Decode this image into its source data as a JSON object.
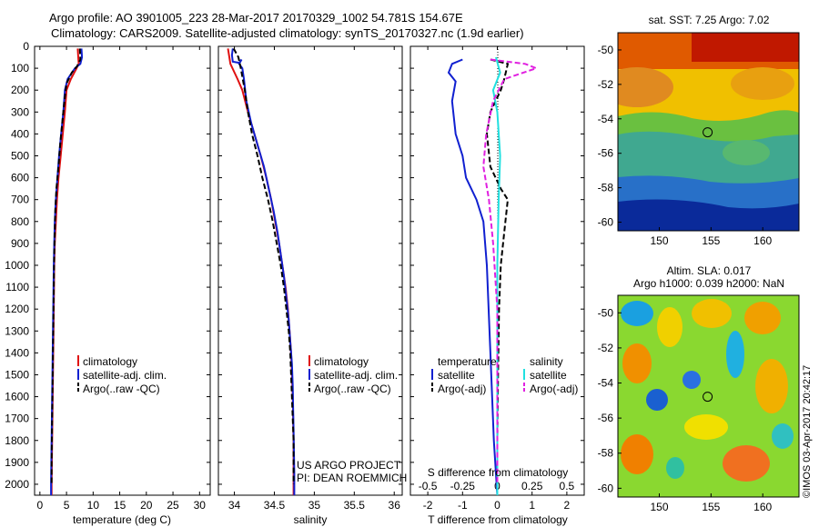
{
  "header": {
    "line1": "Argo profile: AO 3901005_223 28-Mar-2017 20170329_1002 54.781S 154.67E",
    "line2": "Climatology: CARS2009. Satellite-adjusted climatology: synTS_20170327.nc (1.9d earlier)"
  },
  "colors": {
    "climatology": "#e01010",
    "satellite": "#1020d0",
    "argo": "#000000",
    "salinity_satellite": "#20e0e0",
    "salinity_argo": "#e020e0"
  },
  "chart_data": [
    {
      "type": "line",
      "name": "temperature-profile",
      "xlabel": "temperature (deg C)",
      "ylabel": "",
      "xlim": [
        -1,
        32
      ],
      "ylim": [
        2050,
        0
      ],
      "xticks": [
        0,
        5,
        10,
        15,
        20,
        25,
        30
      ],
      "yticks": [
        0,
        100,
        200,
        300,
        400,
        500,
        600,
        700,
        800,
        900,
        1000,
        1100,
        1200,
        1300,
        1400,
        1500,
        1600,
        1700,
        1800,
        1900,
        2000
      ],
      "legend": [
        "climatology",
        "satellite-adj. clim.",
        "Argo(..raw -QC)"
      ],
      "legend_position": "lower-center",
      "series": [
        {
          "name": "climatology",
          "color": "#e01010",
          "dash": false,
          "points": [
            [
              7.1,
              10
            ],
            [
              7.2,
              50
            ],
            [
              7.3,
              80
            ],
            [
              6.9,
              100
            ],
            [
              5.8,
              150
            ],
            [
              5.0,
              200
            ],
            [
              4.7,
              300
            ],
            [
              4.3,
              400
            ],
            [
              3.9,
              500
            ],
            [
              3.5,
              600
            ],
            [
              3.2,
              700
            ],
            [
              3.0,
              800
            ],
            [
              2.8,
              900
            ],
            [
              2.7,
              1000
            ],
            [
              2.6,
              1200
            ],
            [
              2.5,
              1400
            ],
            [
              2.4,
              1600
            ],
            [
              2.3,
              1800
            ],
            [
              2.2,
              2000
            ],
            [
              2.2,
              2050
            ]
          ]
        },
        {
          "name": "satellite-adj. clim.",
          "color": "#1020d0",
          "dash": false,
          "points": [
            [
              7.8,
              10
            ],
            [
              7.9,
              50
            ],
            [
              7.6,
              80
            ],
            [
              6.6,
              100
            ],
            [
              5.2,
              150
            ],
            [
              4.7,
              200
            ],
            [
              4.4,
              300
            ],
            [
              4.0,
              400
            ],
            [
              3.6,
              500
            ],
            [
              3.3,
              600
            ],
            [
              3.0,
              700
            ],
            [
              2.8,
              800
            ],
            [
              2.7,
              900
            ],
            [
              2.6,
              1000
            ],
            [
              2.5,
              1200
            ],
            [
              2.4,
              1400
            ],
            [
              2.3,
              1600
            ],
            [
              2.2,
              1800
            ],
            [
              2.1,
              2000
            ],
            [
              2.1,
              2050
            ]
          ]
        },
        {
          "name": "Argo(..raw -QC)",
          "color": "#000000",
          "dash": true,
          "points": [
            [
              7.5,
              10
            ],
            [
              7.6,
              60
            ],
            [
              7.0,
              90
            ],
            [
              6.0,
              120
            ],
            [
              5.0,
              170
            ],
            [
              4.6,
              250
            ],
            [
              4.2,
              350
            ],
            [
              3.8,
              450
            ],
            [
              3.5,
              550
            ],
            [
              3.1,
              650
            ],
            [
              2.9,
              750
            ],
            [
              2.8,
              850
            ],
            [
              2.7,
              950
            ],
            [
              2.6,
              1100
            ],
            [
              2.5,
              1300
            ],
            [
              2.4,
              1500
            ],
            [
              2.3,
              1700
            ],
            [
              2.2,
              1900
            ],
            [
              2.2,
              2000
            ]
          ]
        }
      ]
    },
    {
      "type": "line",
      "name": "salinity-profile",
      "xlabel": "salinity",
      "ylabel": "",
      "xlim": [
        33.8,
        36.1
      ],
      "ylim": [
        2050,
        0
      ],
      "xticks": [
        34,
        34.5,
        35,
        35.5,
        36
      ],
      "legend": [
        "climatology",
        "satellite-adj. clim.",
        "Argo(..raw -QC)"
      ],
      "legend_position": "lower-center",
      "annotation": [
        "US ARGO PROJECT",
        "PI: DEAN ROEMMICH"
      ],
      "series": [
        {
          "name": "climatology",
          "color": "#e01010",
          "dash": false,
          "points": [
            [
              33.92,
              10
            ],
            [
              33.95,
              80
            ],
            [
              34.04,
              150
            ],
            [
              34.1,
              200
            ],
            [
              34.17,
              300
            ],
            [
              34.25,
              400
            ],
            [
              34.33,
              500
            ],
            [
              34.4,
              600
            ],
            [
              34.46,
              700
            ],
            [
              34.51,
              800
            ],
            [
              34.56,
              900
            ],
            [
              34.6,
              1000
            ],
            [
              34.64,
              1100
            ],
            [
              34.67,
              1200
            ],
            [
              34.69,
              1300
            ],
            [
              34.71,
              1400
            ],
            [
              34.72,
              1500
            ],
            [
              34.73,
              1600
            ],
            [
              34.735,
              1700
            ],
            [
              34.74,
              1800
            ],
            [
              34.74,
              1900
            ],
            [
              34.74,
              2000
            ],
            [
              34.74,
              2050
            ]
          ]
        },
        {
          "name": "satellite-adj. clim.",
          "color": "#1020d0",
          "dash": false,
          "points": [
            [
              33.98,
              10
            ],
            [
              33.97,
              40
            ],
            [
              33.98,
              70
            ],
            [
              34.06,
              75
            ],
            [
              34.09,
              60
            ],
            [
              34.06,
              80
            ],
            [
              34.1,
              100
            ],
            [
              34.12,
              150
            ],
            [
              34.15,
              250
            ],
            [
              34.21,
              350
            ],
            [
              34.29,
              450
            ],
            [
              34.37,
              550
            ],
            [
              34.43,
              650
            ],
            [
              34.49,
              750
            ],
            [
              34.54,
              850
            ],
            [
              34.58,
              950
            ],
            [
              34.62,
              1050
            ],
            [
              34.65,
              1150
            ],
            [
              34.68,
              1250
            ],
            [
              34.7,
              1350
            ],
            [
              34.72,
              1450
            ],
            [
              34.73,
              1550
            ],
            [
              34.735,
              1650
            ],
            [
              34.74,
              1750
            ],
            [
              34.745,
              1850
            ],
            [
              34.75,
              1950
            ],
            [
              34.75,
              2050
            ]
          ]
        },
        {
          "name": "Argo(..raw -QC)",
          "color": "#000000",
          "dash": true,
          "points": [
            [
              33.99,
              10
            ],
            [
              34.05,
              50
            ],
            [
              34.08,
              100
            ],
            [
              34.13,
              200
            ],
            [
              34.17,
              300
            ],
            [
              34.22,
              400
            ],
            [
              34.29,
              500
            ],
            [
              34.35,
              600
            ],
            [
              34.42,
              700
            ],
            [
              34.48,
              800
            ],
            [
              34.53,
              900
            ],
            [
              34.58,
              1000
            ],
            [
              34.62,
              1100
            ],
            [
              34.65,
              1200
            ],
            [
              34.68,
              1300
            ],
            [
              34.7,
              1400
            ],
            [
              34.71,
              1500
            ],
            [
              34.72,
              1600
            ],
            [
              34.73,
              1700
            ],
            [
              34.74,
              1800
            ],
            [
              34.74,
              1900
            ],
            [
              34.74,
              2000
            ]
          ]
        }
      ]
    },
    {
      "type": "line",
      "name": "difference-profile",
      "xlabel": "T difference from climatology",
      "x2label": "S difference from climatology",
      "ylabel": "",
      "xlim": [
        -2.5,
        2.5
      ],
      "ylim": [
        2050,
        0
      ],
      "xticks": [
        -2,
        -1,
        0,
        1,
        2
      ],
      "x2ticks": [
        -0.5,
        -0.25,
        0,
        0.25,
        0.5
      ],
      "legend_temperature": {
        "title": "temperature",
        "entries": [
          "satellite",
          "Argo(-adj)"
        ]
      },
      "legend_salinity": {
        "title": "salinity",
        "entries": [
          "satellite",
          "Argo(-adj)"
        ]
      },
      "legend_position": "lower-center",
      "series": [
        {
          "name": "T satellite",
          "color": "#1020d0",
          "dash": false,
          "points": [
            [
              -1.0,
              60
            ],
            [
              -1.3,
              80
            ],
            [
              -1.4,
              120
            ],
            [
              -1.2,
              160
            ],
            [
              -1.3,
              250
            ],
            [
              -1.2,
              400
            ],
            [
              -1.0,
              500
            ],
            [
              -0.9,
              600
            ],
            [
              -0.6,
              700
            ],
            [
              -0.4,
              800
            ],
            [
              -0.3,
              1000
            ],
            [
              -0.2,
              1400
            ],
            [
              -0.1,
              1800
            ],
            [
              0,
              2050
            ]
          ]
        },
        {
          "name": "T Argo(-adj)",
          "color": "#000000",
          "dash": true,
          "points": [
            [
              -0.2,
              60
            ],
            [
              0.3,
              80
            ],
            [
              0.2,
              150
            ],
            [
              0.1,
              200
            ],
            [
              -0.2,
              300
            ],
            [
              -0.3,
              400
            ],
            [
              -0.2,
              550
            ],
            [
              0.1,
              650
            ],
            [
              0.3,
              700
            ],
            [
              0.2,
              850
            ],
            [
              0.1,
              1000
            ],
            [
              0.05,
              1200
            ],
            [
              0.02,
              1500
            ],
            [
              0,
              1800
            ],
            [
              0,
              2000
            ]
          ]
        },
        {
          "name": "S satellite",
          "color": "#20e0e0",
          "dash": false,
          "points": [
            [
              -0.01,
              50
            ],
            [
              0.02,
              120
            ],
            [
              -0.03,
              200
            ],
            [
              0.0,
              300
            ],
            [
              0.02,
              500
            ],
            [
              0.01,
              700
            ],
            [
              0.0,
              1000
            ],
            [
              0.0,
              1500
            ],
            [
              0.0,
              2050
            ]
          ]
        },
        {
          "name": "S Argo(-adj)",
          "color": "#e020e0",
          "dash": true,
          "points": [
            [
              -0.05,
              60
            ],
            [
              0.2,
              80
            ],
            [
              0.28,
              100
            ],
            [
              0.05,
              150
            ],
            [
              -0.03,
              250
            ],
            [
              -0.08,
              400
            ],
            [
              -0.1,
              550
            ],
            [
              -0.06,
              700
            ],
            [
              -0.03,
              900
            ],
            [
              0,
              1200
            ],
            [
              0,
              1600
            ],
            [
              0,
              2000
            ]
          ]
        }
      ]
    },
    {
      "type": "heatmap",
      "name": "sst-map",
      "title": "sat. SST: 7.25 Argo: 7.02",
      "xlim": [
        146,
        163.5
      ],
      "ylim": [
        -60.5,
        -49
      ],
      "xticks": [
        150,
        155,
        160
      ],
      "yticks": [
        -50,
        -52,
        -54,
        -56,
        -58,
        -60
      ],
      "xtick_labels": [
        "150",
        "155",
        "160"
      ],
      "ytick_labels": [
        "-50",
        "-52",
        "-54",
        "-56",
        "-58",
        "-60"
      ],
      "argo_location": [
        154.67,
        -54.781
      ]
    },
    {
      "type": "heatmap",
      "name": "sla-map",
      "title": "Altim. SLA: 0.017",
      "subtitle": "Argo h1000: 0.039 h2000: NaN",
      "xlim": [
        146,
        163.5
      ],
      "ylim": [
        -60.5,
        -49
      ],
      "xticks": [
        150,
        155,
        160
      ],
      "yticks": [
        -50,
        -52,
        -54,
        -56,
        -58,
        -60
      ],
      "xtick_labels": [
        "150",
        "155",
        "160"
      ],
      "ytick_labels": [
        "-50",
        "-52",
        "-54",
        "-56",
        "-58",
        "-60"
      ],
      "argo_location": [
        154.67,
        -54.781
      ]
    }
  ],
  "stamp": "©IMOS 03-Apr-2017 20:42:17"
}
